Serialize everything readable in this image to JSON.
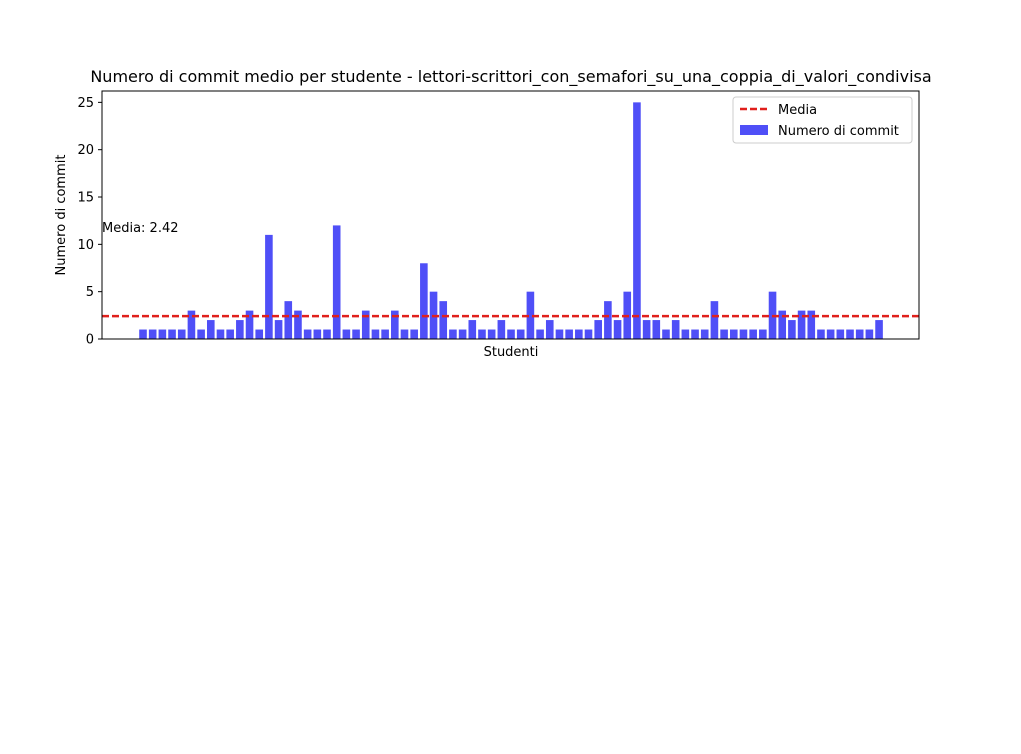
{
  "chart_data": {
    "type": "bar",
    "title": "Numero di commit medio per studente - lettori-scrittori_con_semafori_su_una_coppia_di_valori_condivisa",
    "xlabel": "Studenti",
    "ylabel": "Numero di commit",
    "ylim": [
      0,
      26.2
    ],
    "yticks": [
      0,
      5,
      10,
      15,
      20,
      25
    ],
    "grid": false,
    "legend_position": "top-right",
    "bar_color": "#4f4ff7",
    "mean_line_color": "#e0201c",
    "mean": 2.42,
    "mean_label": "Media: 2.42",
    "legend": [
      {
        "label": "Media",
        "kind": "dashed-line",
        "color": "#e0201c"
      },
      {
        "label": "Numero di commit",
        "kind": "patch",
        "color": "#4f4ff7"
      }
    ],
    "series": [
      {
        "name": "Numero di commit",
        "values": [
          1,
          1,
          1,
          1,
          1,
          3,
          1,
          2,
          1,
          1,
          2,
          3,
          1,
          11,
          2,
          4,
          3,
          1,
          1,
          1,
          12,
          1,
          1,
          3,
          1,
          1,
          3,
          1,
          1,
          8,
          5,
          4,
          1,
          1,
          2,
          1,
          1,
          2,
          1,
          1,
          5,
          1,
          2,
          1,
          1,
          1,
          1,
          2,
          4,
          2,
          5,
          25,
          2,
          2,
          1,
          2,
          1,
          1,
          1,
          4,
          1,
          1,
          1,
          1,
          1,
          5,
          3,
          2,
          3,
          3,
          1,
          1,
          1,
          1,
          1,
          1,
          2
        ]
      }
    ]
  }
}
